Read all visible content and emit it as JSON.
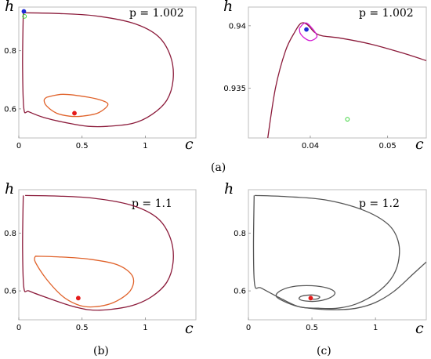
{
  "chart_data": [
    {
      "type": "line",
      "ylabel": "h",
      "xlabel": "c",
      "param": "p = 1.002",
      "xlim": [
        0,
        1.4
      ],
      "ylim": [
        0.5,
        0.95
      ],
      "xticks": [
        "0",
        "0.5",
        "1"
      ],
      "yticks": [
        "0.6",
        "0.8"
      ],
      "series": [
        {
          "color": "#8b1a3a",
          "points": [
            [
              0.05,
              0.93
            ],
            [
              0.3,
              0.928
            ],
            [
              0.6,
              0.92
            ],
            [
              0.9,
              0.895
            ],
            [
              1.1,
              0.85
            ],
            [
              1.2,
              0.78
            ],
            [
              1.22,
              0.7
            ],
            [
              1.17,
              0.63
            ],
            [
              1.05,
              0.58
            ],
            [
              0.9,
              0.55
            ],
            [
              0.7,
              0.54
            ],
            [
              0.55,
              0.54
            ],
            [
              0.4,
              0.55
            ],
            [
              0.2,
              0.57
            ],
            [
              0.08,
              0.59
            ],
            [
              0.04,
              0.6
            ],
            [
              0.03,
              0.75
            ],
            [
              0.035,
              0.93
            ]
          ]
        },
        {
          "color": "#e0622a",
          "points": [
            [
              0.22,
              0.64
            ],
            [
              0.35,
              0.65
            ],
            [
              0.55,
              0.64
            ],
            [
              0.68,
              0.625
            ],
            [
              0.7,
              0.61
            ],
            [
              0.62,
              0.585
            ],
            [
              0.5,
              0.575
            ],
            [
              0.4,
              0.575
            ],
            [
              0.3,
              0.585
            ],
            [
              0.22,
              0.61
            ],
            [
              0.2,
              0.63
            ],
            [
              0.22,
              0.64
            ]
          ]
        }
      ],
      "points": [
        {
          "x": 0.44,
          "y": 0.585,
          "color": "#e51b1b"
        },
        {
          "x": 0.04,
          "y": 0.935,
          "color": "#1e2bd6"
        },
        {
          "x": 0.045,
          "y": 0.918,
          "color": "#3bd43b"
        }
      ]
    },
    {
      "type": "line",
      "ylabel": "h",
      "xlabel": "c",
      "param": "p = 1.002",
      "xlim": [
        0.032,
        0.055
      ],
      "ylim": [
        0.931,
        0.9415
      ],
      "xticks": [
        "0.04",
        "0.05"
      ],
      "yticks": [
        "0.935",
        "0.94"
      ],
      "series": [
        {
          "color": "#8b1a3a",
          "points": [
            [
              0.0345,
              0.931
            ],
            [
              0.0355,
              0.935
            ],
            [
              0.0368,
              0.938
            ],
            [
              0.038,
              0.9395
            ],
            [
              0.0388,
              0.9402
            ],
            [
              0.0396,
              0.9401
            ],
            [
              0.0405,
              0.9395
            ],
            [
              0.0415,
              0.9392
            ],
            [
              0.044,
              0.939
            ],
            [
              0.048,
              0.9385
            ],
            [
              0.052,
              0.9378
            ],
            [
              0.055,
              0.9372
            ]
          ]
        },
        {
          "color": "#d21ad2",
          "points": [
            [
              0.0386,
              0.9398
            ],
            [
              0.0392,
              0.9402
            ],
            [
              0.0398,
              0.9401
            ],
            [
              0.0408,
              0.9393
            ],
            [
              0.0407,
              0.939
            ],
            [
              0.04,
              0.9388
            ],
            [
              0.0393,
              0.939
            ],
            [
              0.0387,
              0.9394
            ],
            [
              0.0386,
              0.9398
            ]
          ]
        }
      ],
      "points": [
        {
          "x": 0.0395,
          "y": 0.9397,
          "color": "#1e2bd6"
        },
        {
          "x": 0.0448,
          "y": 0.9325,
          "color": "#3bd43b"
        }
      ]
    },
    {
      "type": "line",
      "ylabel": "h",
      "xlabel": "c",
      "param": "p = 1.1",
      "xlim": [
        0,
        1.4
      ],
      "ylim": [
        0.5,
        0.95
      ],
      "xticks": [
        "0",
        "0.5",
        "1"
      ],
      "yticks": [
        "0.6",
        "0.8"
      ],
      "series": [
        {
          "color": "#8b1a3a",
          "points": [
            [
              0.05,
              0.93
            ],
            [
              0.3,
              0.928
            ],
            [
              0.6,
              0.92
            ],
            [
              0.9,
              0.895
            ],
            [
              1.1,
              0.85
            ],
            [
              1.2,
              0.78
            ],
            [
              1.22,
              0.7
            ],
            [
              1.17,
              0.63
            ],
            [
              1.05,
              0.58
            ],
            [
              0.9,
              0.55
            ],
            [
              0.7,
              0.535
            ],
            [
              0.55,
              0.535
            ],
            [
              0.4,
              0.55
            ],
            [
              0.2,
              0.58
            ],
            [
              0.08,
              0.6
            ],
            [
              0.04,
              0.61
            ],
            [
              0.03,
              0.75
            ],
            [
              0.035,
              0.93
            ]
          ]
        },
        {
          "color": "#e0622a",
          "points": [
            [
              0.13,
              0.72
            ],
            [
              0.3,
              0.718
            ],
            [
              0.55,
              0.71
            ],
            [
              0.78,
              0.69
            ],
            [
              0.9,
              0.65
            ],
            [
              0.88,
              0.6
            ],
            [
              0.75,
              0.56
            ],
            [
              0.6,
              0.545
            ],
            [
              0.48,
              0.55
            ],
            [
              0.35,
              0.58
            ],
            [
              0.22,
              0.64
            ],
            [
              0.13,
              0.7
            ],
            [
              0.13,
              0.72
            ]
          ]
        }
      ],
      "points": [
        {
          "x": 0.47,
          "y": 0.575,
          "color": "#e51b1b"
        }
      ]
    },
    {
      "type": "line",
      "ylabel": "h",
      "xlabel": "c",
      "param": "p = 1.2",
      "xlim": [
        0,
        1.4
      ],
      "ylim": [
        0.5,
        0.95
      ],
      "xticks": [
        "0",
        "0.5",
        "1"
      ],
      "yticks": [
        "0.6",
        "0.8"
      ],
      "series": [
        {
          "color": "#555555",
          "points": [
            [
              0.05,
              0.93
            ],
            [
              0.3,
              0.926
            ],
            [
              0.6,
              0.915
            ],
            [
              0.9,
              0.88
            ],
            [
              1.1,
              0.83
            ],
            [
              1.18,
              0.77
            ],
            [
              1.18,
              0.7
            ],
            [
              1.12,
              0.64
            ],
            [
              1.0,
              0.59
            ],
            [
              0.85,
              0.555
            ],
            [
              0.7,
              0.54
            ],
            [
              0.55,
              0.54
            ],
            [
              0.4,
              0.545
            ],
            [
              0.25,
              0.575
            ],
            [
              0.1,
              0.61
            ],
            [
              0.05,
              0.62
            ],
            [
              0.04,
              0.75
            ],
            [
              0.045,
              0.93
            ]
          ]
        },
        {
          "color": "#555555",
          "points": [
            [
              1.4,
              0.7
            ],
            [
              1.3,
              0.66
            ],
            [
              1.15,
              0.6
            ],
            [
              1.0,
              0.56
            ],
            [
              0.85,
              0.54
            ],
            [
              0.7,
              0.535
            ],
            [
              0.55,
              0.537
            ],
            [
              0.4,
              0.545
            ],
            [
              0.3,
              0.56
            ],
            [
              0.22,
              0.58
            ],
            [
              0.25,
              0.6
            ],
            [
              0.35,
              0.615
            ],
            [
              0.5,
              0.618
            ],
            [
              0.62,
              0.61
            ],
            [
              0.68,
              0.595
            ],
            [
              0.65,
              0.578
            ],
            [
              0.55,
              0.565
            ],
            [
              0.45,
              0.565
            ],
            [
              0.4,
              0.572
            ],
            [
              0.42,
              0.582
            ],
            [
              0.5,
              0.586
            ],
            [
              0.56,
              0.58
            ],
            [
              0.54,
              0.572
            ],
            [
              0.49,
              0.571
            ]
          ]
        }
      ],
      "points": [
        {
          "x": 0.49,
          "y": 0.575,
          "color": "#e51b1b"
        }
      ]
    }
  ],
  "captions": {
    "a": "(a)",
    "b": "(b)",
    "c": "(c)"
  }
}
